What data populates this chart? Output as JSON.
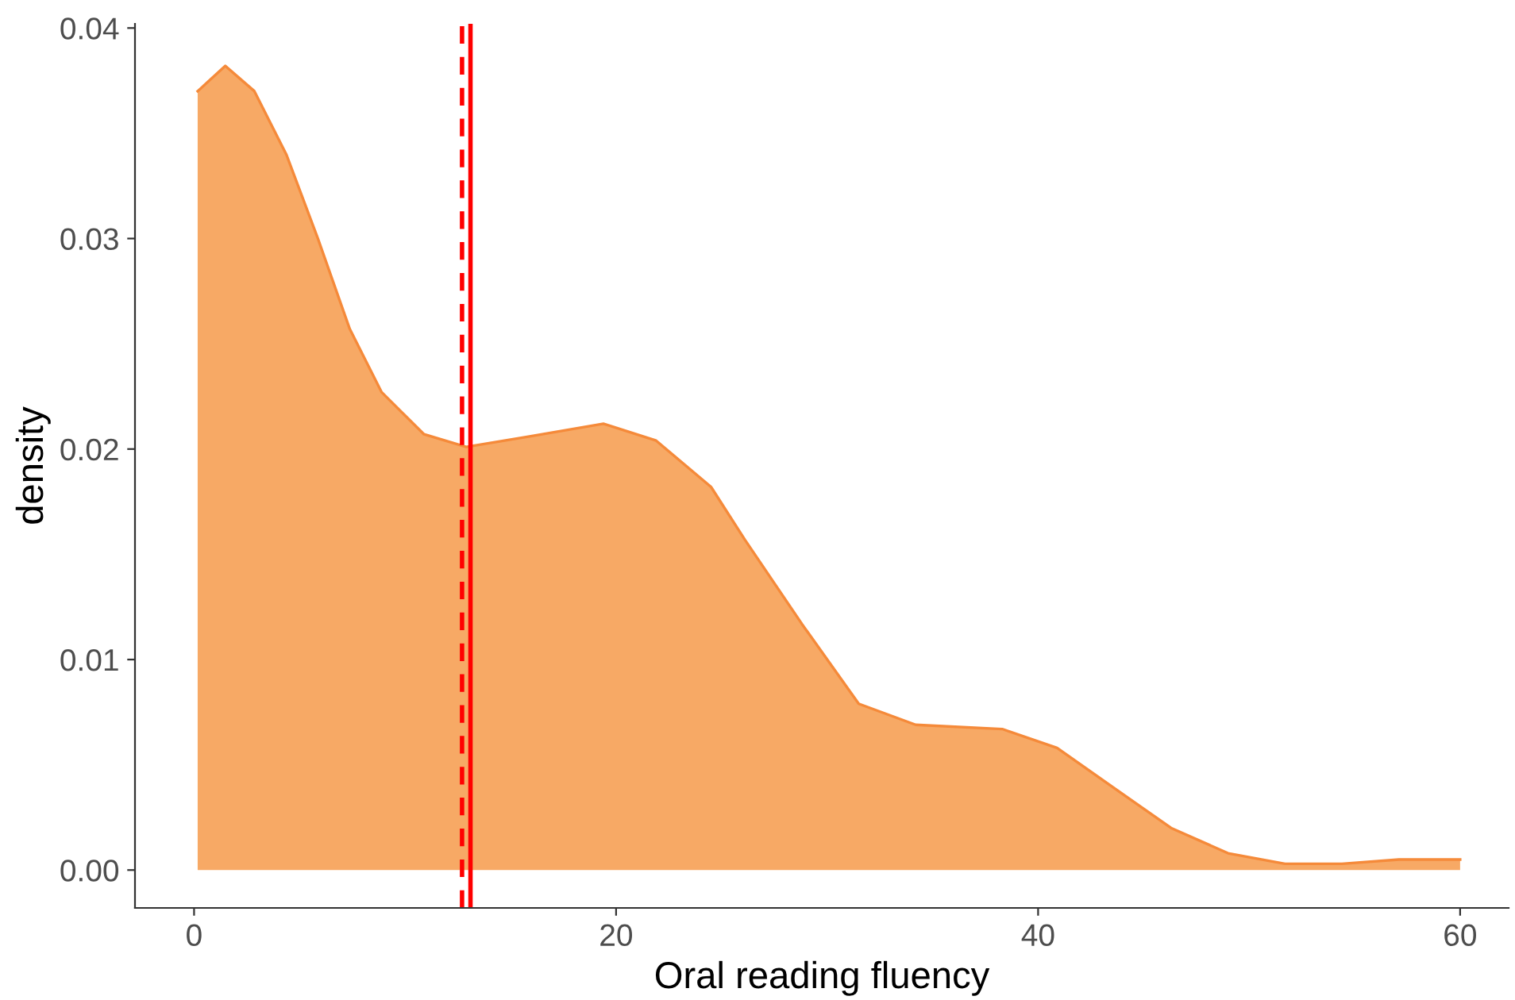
{
  "chart_data": {
    "type": "area",
    "xlabel": "Oral reading fluency",
    "ylabel": "density",
    "series": [
      {
        "color": "#f7a965",
        "x": [
          0.17,
          1.48,
          2.86,
          4.37,
          5.87,
          7.38,
          8.89,
          10.9,
          12.9,
          15.9,
          19.4,
          21.9,
          24.5,
          26.1,
          28.8,
          31.5,
          34.2,
          38.3,
          40.9,
          43.6,
          46.3,
          49.0,
          51.7,
          54.4,
          57.1,
          60.0
        ],
        "values": [
          0.037,
          0.0382,
          0.037,
          0.034,
          0.03,
          0.0257,
          0.0227,
          0.0207,
          0.0201,
          0.0206,
          0.0212,
          0.0204,
          0.0182,
          0.0157,
          0.0117,
          0.0079,
          0.0069,
          0.0067,
          0.0058,
          0.0039,
          0.002,
          0.0008,
          0.0003,
          0.0003,
          0.0005,
          0.0005
        ]
      }
    ],
    "ref_lines": [
      {
        "axis": "x",
        "value": 12.7,
        "color": "#ff0000",
        "line_style": "dashed"
      },
      {
        "axis": "x",
        "value": 13.1,
        "color": "#ff0000",
        "line_style": "solid"
      }
    ],
    "xlim": [
      -2.8,
      62.3
    ],
    "ylim": [
      -0.0018,
      0.0402
    ],
    "xticks": [
      0,
      20,
      40,
      60
    ],
    "yticks": [
      {
        "value": 0,
        "label": "0.00"
      },
      {
        "value": 0.01,
        "label": "0.01"
      },
      {
        "value": 0.02,
        "label": "0.02"
      },
      {
        "value": 0.03,
        "label": "0.03"
      },
      {
        "value": 0.04,
        "label": "0.04"
      }
    ],
    "grid": false
  }
}
